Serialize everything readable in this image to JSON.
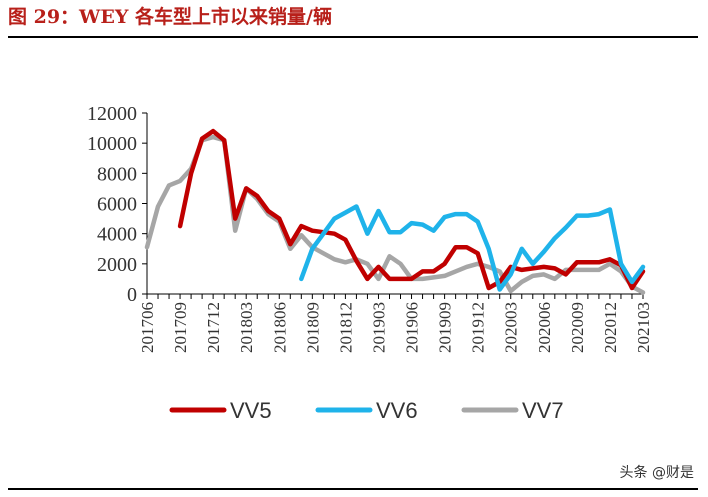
{
  "header": {
    "title": "图 29：WEY 各车型上市以来销量/辆"
  },
  "watermark": "头条 @财是",
  "colors": {
    "VV5": "#c00000",
    "VV6": "#1fb3ea",
    "VV7": "#a6a6a6",
    "axis": "#000000",
    "title": "#b8201a"
  },
  "chart_data": {
    "type": "line",
    "title": "",
    "xlabel": "",
    "ylabel": "",
    "ylim": [
      0,
      12000
    ],
    "yticks": [
      0,
      2000,
      4000,
      6000,
      8000,
      10000,
      12000
    ],
    "ytick_labels": [
      "0",
      "2000",
      "4000",
      "6000",
      "8000",
      "10000",
      "12000"
    ],
    "grid": false,
    "legend_position": "bottom",
    "x": [
      "201706",
      "201707",
      "201708",
      "201709",
      "201710",
      "201711",
      "201712",
      "201801",
      "201802",
      "201803",
      "201804",
      "201805",
      "201806",
      "201807",
      "201808",
      "201809",
      "201810",
      "201811",
      "201812",
      "201901",
      "201902",
      "201903",
      "201904",
      "201905",
      "201906",
      "201907",
      "201908",
      "201909",
      "201910",
      "201911",
      "201912",
      "202001",
      "202002",
      "202003",
      "202004",
      "202005",
      "202006",
      "202007",
      "202008",
      "202009",
      "202010",
      "202011",
      "202012",
      "202101",
      "202102",
      "202103"
    ],
    "xtick_labels": [
      "201706",
      "201709",
      "201712",
      "201803",
      "201806",
      "201809",
      "201812",
      "201903",
      "201906",
      "201909",
      "201912",
      "202003",
      "202006",
      "202009",
      "202012",
      "202103"
    ],
    "series": [
      {
        "name": "VV5",
        "values": [
          null,
          null,
          null,
          4500,
          8000,
          10300,
          10800,
          10200,
          5000,
          7000,
          6500,
          5500,
          5000,
          3300,
          4500,
          4200,
          4100,
          4000,
          3600,
          2200,
          1000,
          1800,
          1000,
          1000,
          1000,
          1500,
          1500,
          2000,
          3100,
          3100,
          2700,
          400,
          800,
          1800,
          1600,
          1700,
          1800,
          1700,
          1300,
          2100,
          2100,
          2100,
          2300,
          1900,
          400,
          1500
        ]
      },
      {
        "name": "VV6",
        "values": [
          null,
          null,
          null,
          null,
          null,
          null,
          null,
          null,
          null,
          null,
          null,
          null,
          null,
          null,
          1000,
          3000,
          4000,
          5000,
          5400,
          5800,
          4000,
          5500,
          4100,
          4100,
          4700,
          4600,
          4200,
          5100,
          5300,
          5300,
          4800,
          3000,
          300,
          1300,
          3000,
          2000,
          2800,
          3700,
          4400,
          5200,
          5200,
          5300,
          5600,
          2000,
          800,
          1800
        ]
      },
      {
        "name": "VV7",
        "values": [
          3100,
          5800,
          7200,
          7500,
          8300,
          10200,
          10400,
          10200,
          4200,
          7000,
          6300,
          5300,
          4800,
          3000,
          3900,
          3100,
          2700,
          2300,
          2100,
          2300,
          2000,
          1000,
          2500,
          2000,
          1000,
          1000,
          1100,
          1200,
          1500,
          1800,
          2000,
          1800,
          1500,
          200,
          800,
          1200,
          1300,
          1000,
          1600,
          1600,
          1600,
          1600,
          2000,
          1500,
          500,
          100
        ]
      }
    ]
  }
}
